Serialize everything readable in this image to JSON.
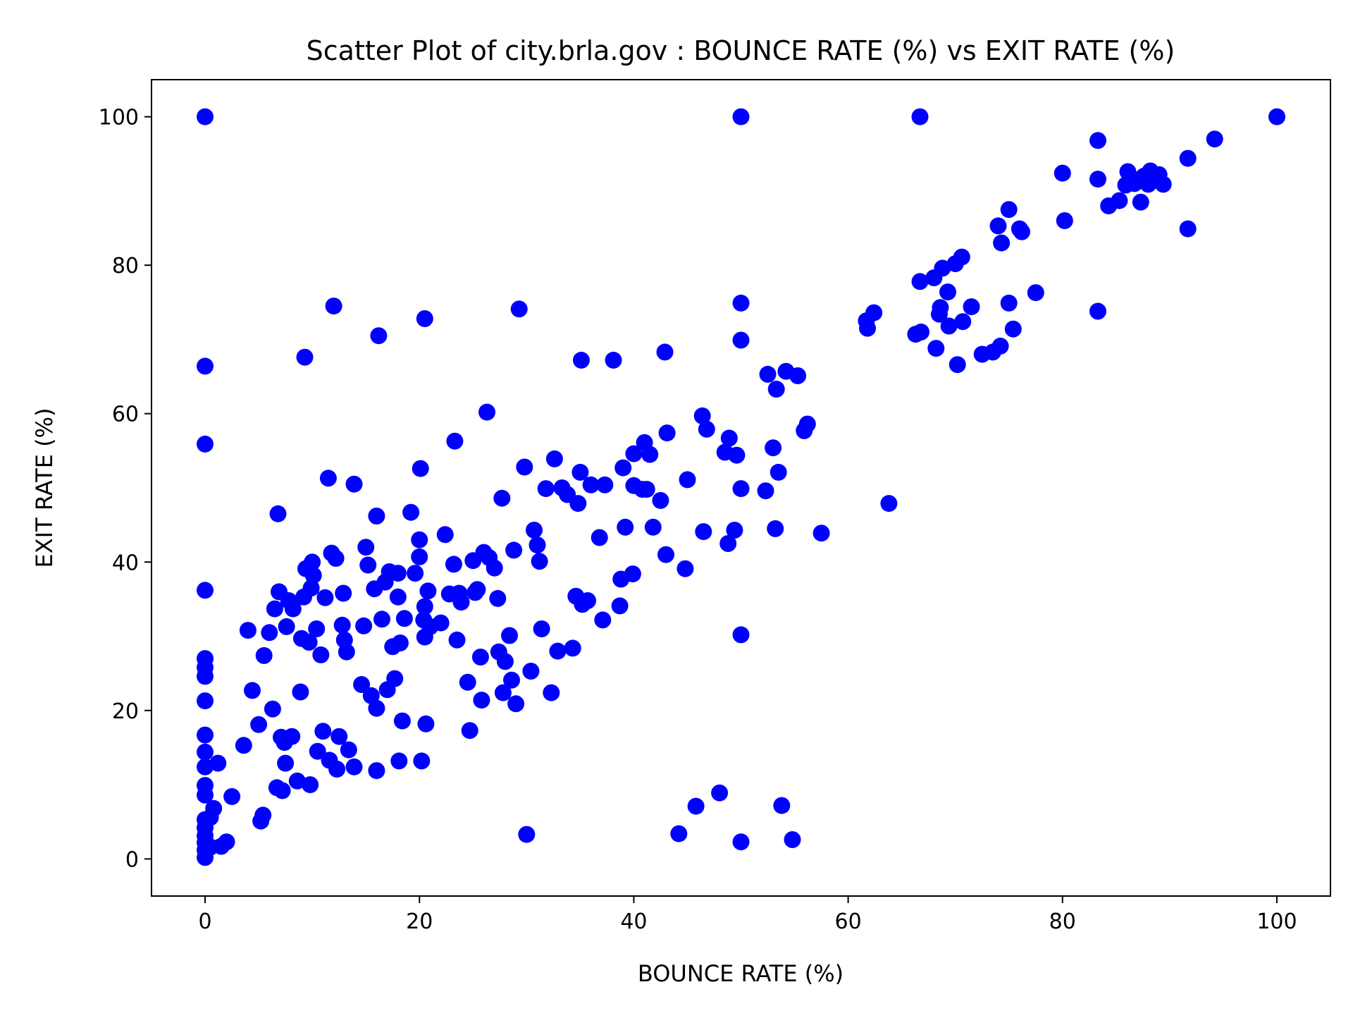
{
  "chart_data": {
    "type": "scatter",
    "title": "Scatter Plot of city.brla.gov : BOUNCE RATE (%) vs EXIT RATE (%)",
    "xlabel": "BOUNCE RATE (%)",
    "ylabel": "EXIT RATE (%)",
    "xlim": [
      -5,
      105
    ],
    "ylim": [
      -5,
      105
    ],
    "xticks": [
      0,
      20,
      40,
      60,
      80,
      100
    ],
    "yticks": [
      0,
      20,
      40,
      60,
      80,
      100
    ],
    "grid": false,
    "marker_color": "#0000ff",
    "points": [
      [
        0,
        100
      ],
      [
        0,
        66.4
      ],
      [
        0,
        55.9
      ],
      [
        0,
        36.2
      ],
      [
        0,
        27
      ],
      [
        0,
        25.8
      ],
      [
        0,
        24.6
      ],
      [
        0,
        21.3
      ],
      [
        0,
        16.7
      ],
      [
        0,
        14.4
      ],
      [
        0,
        12.4
      ],
      [
        0,
        9.9
      ],
      [
        0,
        8.6
      ],
      [
        0,
        5.3
      ],
      [
        0,
        4.2
      ],
      [
        0,
        3.1
      ],
      [
        0,
        2.2
      ],
      [
        0,
        1.2
      ],
      [
        0,
        0.2
      ],
      [
        0.5,
        5.6
      ],
      [
        0.5,
        1.6
      ],
      [
        0.8,
        6.8
      ],
      [
        1.2,
        12.9
      ],
      [
        1.5,
        1.7
      ],
      [
        2,
        2.3
      ],
      [
        2.5,
        8.4
      ],
      [
        3.6,
        15.3
      ],
      [
        4,
        30.8
      ],
      [
        4.4,
        22.7
      ],
      [
        5,
        18.1
      ],
      [
        5.2,
        5.1
      ],
      [
        5.4,
        5.9
      ],
      [
        5.5,
        27.4
      ],
      [
        6,
        30.5
      ],
      [
        6.3,
        20.2
      ],
      [
        6.5,
        33.7
      ],
      [
        6.7,
        9.6
      ],
      [
        6.8,
        46.5
      ],
      [
        6.9,
        36
      ],
      [
        7.1,
        16.4
      ],
      [
        7.2,
        9.2
      ],
      [
        7.4,
        15.7
      ],
      [
        7.5,
        12.9
      ],
      [
        7.6,
        31.3
      ],
      [
        7.8,
        34.8
      ],
      [
        8.1,
        16.5
      ],
      [
        8.2,
        33.7
      ],
      [
        8.6,
        10.5
      ],
      [
        8.9,
        22.5
      ],
      [
        9,
        29.7
      ],
      [
        9.2,
        35.3
      ],
      [
        9.3,
        67.6
      ],
      [
        9.4,
        39.1
      ],
      [
        9.7,
        29.2
      ],
      [
        9.8,
        10
      ],
      [
        9.9,
        36.5
      ],
      [
        10,
        40
      ],
      [
        10.1,
        38.2
      ],
      [
        10.4,
        31
      ],
      [
        10.5,
        14.5
      ],
      [
        10.8,
        27.5
      ],
      [
        11,
        17.2
      ],
      [
        11.2,
        35.2
      ],
      [
        11.5,
        51.3
      ],
      [
        11.6,
        13.3
      ],
      [
        11.8,
        41.2
      ],
      [
        12,
        74.5
      ],
      [
        12.2,
        40.5
      ],
      [
        12.3,
        12.1
      ],
      [
        12.5,
        16.5
      ],
      [
        12.8,
        31.5
      ],
      [
        12.9,
        35.8
      ],
      [
        13,
        29.5
      ],
      [
        13.2,
        27.9
      ],
      [
        13.4,
        14.7
      ],
      [
        13.9,
        12.4
      ],
      [
        13.9,
        50.5
      ],
      [
        14.6,
        23.5
      ],
      [
        14.8,
        31.4
      ],
      [
        15,
        42
      ],
      [
        15.2,
        39.6
      ],
      [
        15.5,
        22
      ],
      [
        15.8,
        36.4
      ],
      [
        16,
        20.3
      ],
      [
        16,
        11.9
      ],
      [
        16,
        46.2
      ],
      [
        16.2,
        70.5
      ],
      [
        16.5,
        32.3
      ],
      [
        16.8,
        37.3
      ],
      [
        17,
        22.8
      ],
      [
        17.2,
        38.7
      ],
      [
        17.5,
        28.6
      ],
      [
        17.7,
        24.3
      ],
      [
        18,
        38.5
      ],
      [
        18,
        35.3
      ],
      [
        18.1,
        13.2
      ],
      [
        18.2,
        29.1
      ],
      [
        18.4,
        18.6
      ],
      [
        18.6,
        32.4
      ],
      [
        19.2,
        46.7
      ],
      [
        19.6,
        38.5
      ],
      [
        20,
        43
      ],
      [
        20,
        40.7
      ],
      [
        20.1,
        52.6
      ],
      [
        20.2,
        13.2
      ],
      [
        20.4,
        32.2
      ],
      [
        20.5,
        34
      ],
      [
        20.5,
        29.9
      ],
      [
        20.5,
        72.8
      ],
      [
        20.6,
        18.2
      ],
      [
        20.8,
        36.1
      ],
      [
        21,
        31.3
      ],
      [
        22,
        31.8
      ],
      [
        22.4,
        43.7
      ],
      [
        22.8,
        35.7
      ],
      [
        23.2,
        39.7
      ],
      [
        23.3,
        56.3
      ],
      [
        23.5,
        29.5
      ],
      [
        23.7,
        35.8
      ],
      [
        23.9,
        34.6
      ],
      [
        24.5,
        23.8
      ],
      [
        24.7,
        17.3
      ],
      [
        25,
        40.2
      ],
      [
        25.2,
        35.9
      ],
      [
        25.4,
        36.3
      ],
      [
        25.7,
        27.2
      ],
      [
        25.8,
        21.4
      ],
      [
        26,
        41.3
      ],
      [
        26.3,
        60.2
      ],
      [
        26.5,
        40.6
      ],
      [
        27,
        39.2
      ],
      [
        27.3,
        35.1
      ],
      [
        27.4,
        27.9
      ],
      [
        27.7,
        48.6
      ],
      [
        27.8,
        22.4
      ],
      [
        28,
        26.6
      ],
      [
        28.4,
        30.1
      ],
      [
        28.6,
        24.1
      ],
      [
        28.8,
        41.6
      ],
      [
        29,
        20.9
      ],
      [
        29.3,
        74.1
      ],
      [
        29.8,
        52.8
      ],
      [
        30,
        3.3
      ],
      [
        30.4,
        25.3
      ],
      [
        30.7,
        44.3
      ],
      [
        31,
        42.3
      ],
      [
        31.2,
        40.1
      ],
      [
        31.4,
        31
      ],
      [
        31.8,
        49.9
      ],
      [
        32.3,
        22.4
      ],
      [
        32.6,
        53.9
      ],
      [
        32.9,
        28
      ],
      [
        33.3,
        50
      ],
      [
        33.8,
        49.1
      ],
      [
        34.3,
        28.4
      ],
      [
        34.6,
        35.4
      ],
      [
        34.8,
        47.9
      ],
      [
        35,
        52.1
      ],
      [
        35.1,
        67.2
      ],
      [
        35.2,
        34.3
      ],
      [
        35.7,
        34.8
      ],
      [
        36,
        50.4
      ],
      [
        36.8,
        43.3
      ],
      [
        37.1,
        32.2
      ],
      [
        37.3,
        50.4
      ],
      [
        38.1,
        67.2
      ],
      [
        38.7,
        34.1
      ],
      [
        38.8,
        37.7
      ],
      [
        39,
        52.7
      ],
      [
        39.2,
        44.7
      ],
      [
        39.9,
        38.4
      ],
      [
        40,
        54.6
      ],
      [
        40,
        50.3
      ],
      [
        40.8,
        49.8
      ],
      [
        41,
        56.1
      ],
      [
        41.2,
        49.8
      ],
      [
        41.5,
        54.5
      ],
      [
        41.8,
        44.7
      ],
      [
        42.5,
        48.3
      ],
      [
        42.9,
        68.3
      ],
      [
        43,
        41
      ],
      [
        43.1,
        57.4
      ],
      [
        44.2,
        3.4
      ],
      [
        44.8,
        39.1
      ],
      [
        45,
        51.1
      ],
      [
        45.8,
        7.1
      ],
      [
        46.4,
        59.7
      ],
      [
        46.5,
        44.1
      ],
      [
        46.8,
        57.9
      ],
      [
        48,
        8.9
      ],
      [
        48.5,
        54.8
      ],
      [
        48.8,
        42.5
      ],
      [
        48.9,
        56.7
      ],
      [
        49.4,
        44.3
      ],
      [
        49.6,
        54.4
      ],
      [
        50,
        100
      ],
      [
        50,
        74.9
      ],
      [
        50,
        69.9
      ],
      [
        50,
        49.9
      ],
      [
        50,
        30.2
      ],
      [
        50,
        2.3
      ],
      [
        52.3,
        49.6
      ],
      [
        52.5,
        65.3
      ],
      [
        53,
        55.4
      ],
      [
        53.2,
        44.5
      ],
      [
        53.3,
        63.3
      ],
      [
        53.5,
        52.1
      ],
      [
        53.8,
        7.2
      ],
      [
        54.2,
        65.7
      ],
      [
        54.8,
        2.6
      ],
      [
        55.3,
        65.1
      ],
      [
        55.9,
        57.7
      ],
      [
        56.2,
        58.6
      ],
      [
        57.5,
        43.9
      ],
      [
        61.7,
        72.5
      ],
      [
        61.8,
        71.5
      ],
      [
        62.4,
        73.6
      ],
      [
        63.8,
        47.9
      ],
      [
        66.3,
        70.7
      ],
      [
        66.7,
        100
      ],
      [
        66.7,
        77.8
      ],
      [
        66.8,
        71
      ],
      [
        68,
        78.3
      ],
      [
        68.2,
        68.8
      ],
      [
        68.5,
        73.4
      ],
      [
        68.6,
        74.3
      ],
      [
        68.8,
        79.6
      ],
      [
        69.3,
        76.4
      ],
      [
        69.4,
        71.8
      ],
      [
        70,
        80.2
      ],
      [
        70.2,
        66.6
      ],
      [
        70.6,
        81.1
      ],
      [
        70.7,
        72.4
      ],
      [
        71.5,
        74.4
      ],
      [
        72.5,
        68
      ],
      [
        73.5,
        68.3
      ],
      [
        74,
        85.3
      ],
      [
        74.2,
        69.1
      ],
      [
        74.3,
        83
      ],
      [
        75,
        87.5
      ],
      [
        75,
        74.9
      ],
      [
        75.4,
        71.4
      ],
      [
        76,
        84.9
      ],
      [
        76.2,
        84.5
      ],
      [
        77.5,
        76.3
      ],
      [
        80,
        92.4
      ],
      [
        80.2,
        86
      ],
      [
        83.3,
        96.8
      ],
      [
        83.3,
        91.6
      ],
      [
        83.3,
        73.8
      ],
      [
        84.3,
        88
      ],
      [
        85.3,
        88.7
      ],
      [
        85.9,
        90.8
      ],
      [
        86.1,
        92.6
      ],
      [
        86.7,
        91
      ],
      [
        87,
        91.5
      ],
      [
        87.3,
        88.5
      ],
      [
        87.6,
        92
      ],
      [
        88,
        90.9
      ],
      [
        88.2,
        92.7
      ],
      [
        88.5,
        91.4
      ],
      [
        89,
        92.2
      ],
      [
        89.4,
        90.9
      ],
      [
        91.7,
        94.4
      ],
      [
        91.7,
        84.9
      ],
      [
        94.2,
        97
      ],
      [
        100,
        100
      ]
    ]
  }
}
